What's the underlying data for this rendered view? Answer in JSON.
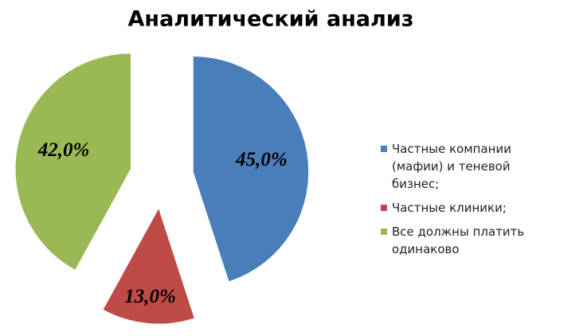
{
  "chart_data": {
    "type": "pie",
    "title": "Аналитический анализ",
    "categories": [
      "Частные компании (мафии) и теневой бизнес;",
      "Частные клиники;",
      "Все должны платить одинаково"
    ],
    "values": [
      45,
      13,
      42
    ],
    "value_labels": [
      "45,0%",
      "13,0%",
      "42,0%"
    ],
    "colors": [
      "#4a7ebb",
      "#be4b48",
      "#98b954"
    ],
    "legend": "right"
  }
}
